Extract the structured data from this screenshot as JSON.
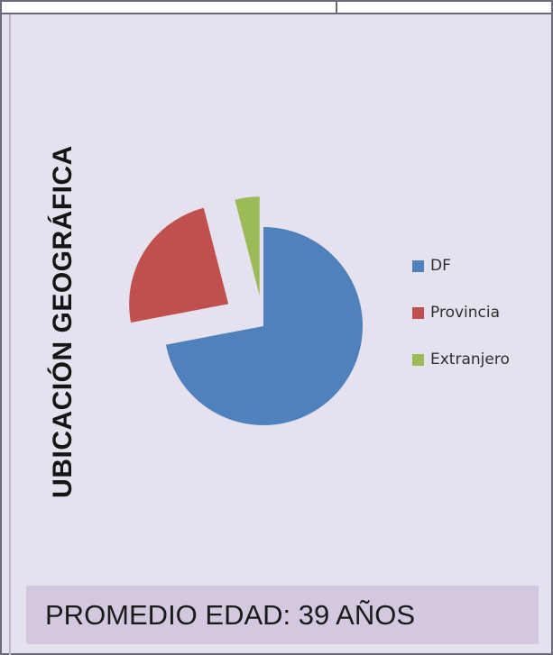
{
  "chart_data": {
    "type": "pie",
    "title": "UBICACIÓN GEOGRÁFICA",
    "categories": [
      "DF",
      "Provincia",
      "Extranjero"
    ],
    "values": [
      72,
      24,
      4
    ],
    "colors": [
      "#4f81bd",
      "#c0504d",
      "#9bbb59"
    ],
    "legend": "right",
    "exploded": true
  },
  "footer": {
    "text": "PROMEDIO EDAD: 39 AÑOS"
  }
}
